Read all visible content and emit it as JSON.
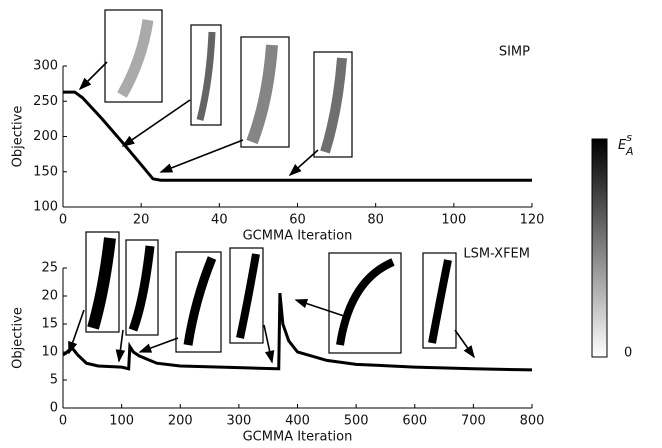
{
  "chart_data": [
    {
      "type": "line",
      "label": "SIMP",
      "xlabel": "GCMMA Iteration",
      "ylabel": "Objective",
      "xlim": [
        0,
        120
      ],
      "ylim": [
        100,
        300
      ],
      "xticks": [
        0,
        20,
        40,
        60,
        80,
        100,
        120
      ],
      "yticks": [
        100,
        150,
        200,
        250,
        300
      ],
      "color": "#000000",
      "x": [
        0,
        3,
        5,
        10,
        15,
        20,
        23,
        25,
        40,
        60,
        80,
        100,
        120
      ],
      "values": [
        263,
        263,
        255,
        225,
        193,
        160,
        140,
        138,
        138,
        138,
        138,
        138,
        138
      ]
    },
    {
      "type": "line",
      "label": "LSM-XFEM",
      "xlabel": "GCMMA Iteration",
      "ylabel": "Objective",
      "xlim": [
        0,
        800
      ],
      "ylim": [
        0,
        25
      ],
      "xticks": [
        0,
        100,
        200,
        300,
        400,
        500,
        600,
        700,
        800
      ],
      "yticks": [
        0,
        5,
        10,
        15,
        20,
        25
      ],
      "color": "#000000",
      "x": [
        0,
        5,
        15,
        25,
        40,
        60,
        100,
        112,
        114,
        120,
        130,
        160,
        200,
        300,
        365,
        368,
        370,
        375,
        385,
        400,
        450,
        500,
        600,
        700,
        800
      ],
      "values": [
        9.5,
        9.8,
        10.8,
        9.5,
        8.0,
        7.5,
        7.3,
        7.0,
        11.0,
        10.0,
        9.3,
        8.0,
        7.5,
        7.2,
        7.0,
        7.0,
        20.5,
        15.0,
        12.0,
        10.0,
        8.5,
        7.8,
        7.3,
        7.0,
        6.8
      ]
    }
  ],
  "colorbar": {
    "symbol": "E",
    "superscript": "s",
    "subscript": "A",
    "ticks": [
      0
    ]
  }
}
